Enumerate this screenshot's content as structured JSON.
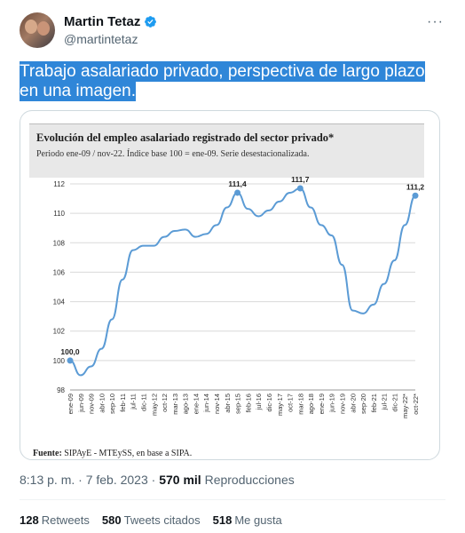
{
  "author": {
    "name": "Martin Tetaz",
    "handle": "@martintetaz"
  },
  "tweet": {
    "text": "Trabajo asalariado privado, perspectiva de largo plazo en una imagen."
  },
  "media": {
    "title": "Evolución del empleo asalariado registrado del sector privado*",
    "subtitle": "Periodo ene-09 / nov-22. Índice base 100 = ene-09. Serie desestacionalizada.",
    "source_label": "Fuente:",
    "source_text": " SIPAyE - MTEySS, en base a SIPA."
  },
  "chart_data": {
    "type": "line",
    "title": "Evolución del empleo asalariado registrado del sector privado*",
    "subtitle": "Periodo ene-09 / nov-22. Índice base 100 = ene-09. Serie desestacionalizada.",
    "ylim": [
      98,
      112
    ],
    "yticks": [
      98,
      100,
      102,
      104,
      106,
      108,
      110,
      112
    ],
    "xticks": [
      "ene-09",
      "jun-09",
      "nov-09",
      "abr-10",
      "sep-10",
      "feb-11",
      "jul-11",
      "dic-11",
      "may-12",
      "oct-12",
      "mar-13",
      "ago-13",
      "ene-14",
      "jun-14",
      "nov-14",
      "abr-15",
      "sep-15",
      "feb-16",
      "jul-16",
      "dic-16",
      "may-17",
      "oct-17",
      "mar-18",
      "ago-18",
      "ene-19",
      "jun-19",
      "nov-19",
      "abr-20",
      "sep-20",
      "feb-21",
      "jul-21",
      "dic-21",
      "may-22*",
      "oct-22*"
    ],
    "grid": "horizontal",
    "series_color": "#5b9bd5",
    "points": [
      {
        "x": "ene-09",
        "y": 100.0
      },
      {
        "x": "jun-09",
        "y": 99.0
      },
      {
        "x": "nov-09",
        "y": 99.6
      },
      {
        "x": "abr-10",
        "y": 100.8
      },
      {
        "x": "sep-10",
        "y": 102.8
      },
      {
        "x": "feb-11",
        "y": 105.5
      },
      {
        "x": "jul-11",
        "y": 107.5
      },
      {
        "x": "dic-11",
        "y": 107.8
      },
      {
        "x": "may-12",
        "y": 107.8
      },
      {
        "x": "oct-12",
        "y": 108.4
      },
      {
        "x": "mar-13",
        "y": 108.8
      },
      {
        "x": "ago-13",
        "y": 108.9
      },
      {
        "x": "ene-14",
        "y": 108.4
      },
      {
        "x": "jun-14",
        "y": 108.6
      },
      {
        "x": "nov-14",
        "y": 109.2
      },
      {
        "x": "abr-15",
        "y": 110.4
      },
      {
        "x": "sep-15",
        "y": 111.4
      },
      {
        "x": "feb-16",
        "y": 110.3
      },
      {
        "x": "jul-16",
        "y": 109.8
      },
      {
        "x": "dic-16",
        "y": 110.2
      },
      {
        "x": "may-17",
        "y": 110.8
      },
      {
        "x": "oct-17",
        "y": 111.4
      },
      {
        "x": "mar-18",
        "y": 111.7
      },
      {
        "x": "ago-18",
        "y": 110.4
      },
      {
        "x": "ene-19",
        "y": 109.2
      },
      {
        "x": "jun-19",
        "y": 108.5
      },
      {
        "x": "nov-19",
        "y": 106.5
      },
      {
        "x": "abr-20",
        "y": 103.4
      },
      {
        "x": "sep-20",
        "y": 103.2
      },
      {
        "x": "feb-21",
        "y": 103.8
      },
      {
        "x": "jul-21",
        "y": 105.2
      },
      {
        "x": "dic-21",
        "y": 106.8
      },
      {
        "x": "may-22*",
        "y": 109.2
      },
      {
        "x": "oct-22*",
        "y": 111.2
      }
    ],
    "annotations": [
      {
        "x": "ene-09",
        "y": 100.0,
        "label": "100,0"
      },
      {
        "x": "sep-15",
        "y": 111.4,
        "label": "111,4"
      },
      {
        "x": "mar-18",
        "y": 111.7,
        "label": "111,7"
      },
      {
        "x": "oct-22*",
        "y": 111.2,
        "label": "111,2"
      }
    ]
  },
  "meta": {
    "time": "8:13 p. m. · 7 feb. 2023 · ",
    "views_count": "570 mil",
    "views_label": " Reproducciones"
  },
  "stats": {
    "retweets_count": "128",
    "retweets_label": "Retweets",
    "quotes_count": "580",
    "quotes_label": "Tweets citados",
    "likes_count": "518",
    "likes_label": "Me gusta"
  },
  "colors": {
    "highlight": "#2f86d8",
    "verified": "#1d9bf0"
  },
  "icons": {
    "verified": "verified-badge-icon",
    "more": "more-options-icon"
  }
}
